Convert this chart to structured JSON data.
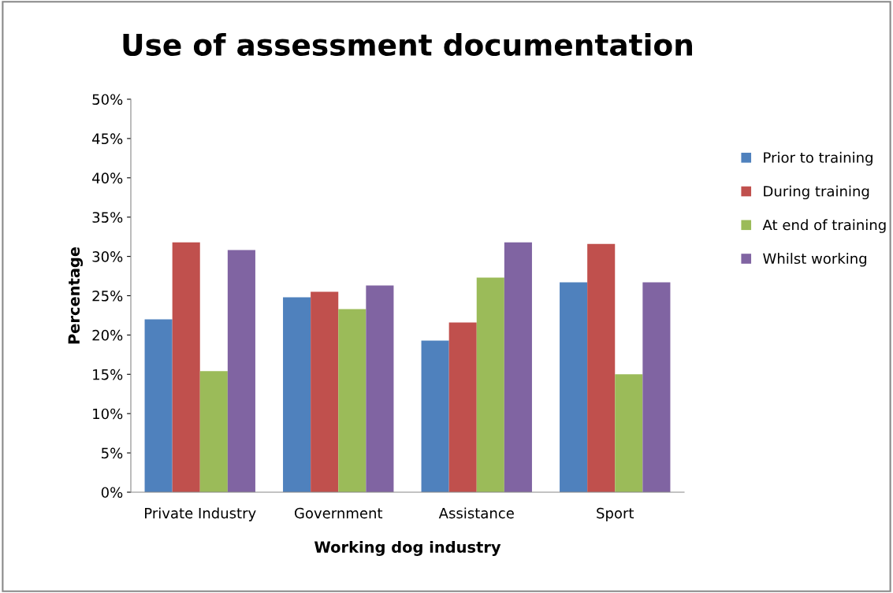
{
  "chart_data": {
    "type": "bar",
    "title": "Use of assessment documentation",
    "xlabel": "Working dog industry",
    "ylabel": "Percentage",
    "categories": [
      "Private Industry",
      "Government",
      "Assistance",
      "Sport"
    ],
    "series": [
      {
        "name": "Prior to training",
        "color": "#4f81bd",
        "values": [
          22.0,
          24.8,
          19.3,
          26.7
        ]
      },
      {
        "name": "During training",
        "color": "#c0504d",
        "values": [
          31.8,
          25.5,
          21.6,
          31.6
        ]
      },
      {
        "name": "At end of training",
        "color": "#9bbb59",
        "values": [
          15.4,
          23.3,
          27.3,
          15.0
        ]
      },
      {
        "name": "Whilst working",
        "color": "#8064a2",
        "values": [
          30.8,
          26.3,
          31.8,
          26.7
        ]
      }
    ],
    "ylim": [
      0,
      50
    ],
    "yticks": [
      {
        "value": 0,
        "label": "0%"
      },
      {
        "value": 5,
        "label": "5%"
      },
      {
        "value": 10,
        "label": "10%"
      },
      {
        "value": 15,
        "label": "15%"
      },
      {
        "value": 20,
        "label": "20%"
      },
      {
        "value": 25,
        "label": "25%"
      },
      {
        "value": 30,
        "label": "30%"
      },
      {
        "value": 35,
        "label": "35%"
      },
      {
        "value": 40,
        "label": "40%"
      },
      {
        "value": 45,
        "label": "45%"
      },
      {
        "value": 50,
        "label": "50%"
      }
    ],
    "grid": false,
    "legend": "right"
  }
}
